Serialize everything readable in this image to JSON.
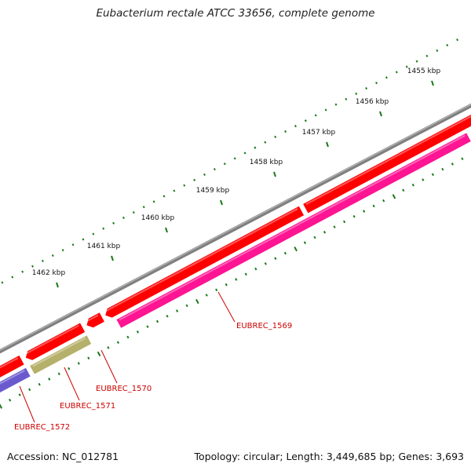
{
  "title": "Eubacterium rectale ATCC 33656, complete genome",
  "footer": {
    "accession_label": "Accession:",
    "accession": "NC_012781",
    "topology_label": "Topology:",
    "topology": "circular",
    "length_label": "Length:",
    "length": "3,449,685 bp",
    "genes_label": "Genes:",
    "genes": "3,693"
  },
  "scale_ticks": [
    "1455 kbp",
    "1456 kbp",
    "1457 kbp",
    "1458 kbp",
    "1459 kbp",
    "1460 kbp",
    "1461 kbp",
    "1462 kbp"
  ],
  "genes": [
    {
      "id": "EUBREC_1569",
      "color": "#ff1493"
    },
    {
      "id": "EUBREC_1570",
      "color": "#ff0000"
    },
    {
      "id": "EUBREC_1571",
      "color": "#b5b06a"
    },
    {
      "id": "EUBREC_1572",
      "color": "#6a5acd"
    }
  ],
  "colors": {
    "backbone": "#808080",
    "forward_strand_gene": "#ff0000",
    "tick": "#1a7a1a",
    "label": "#cc0000"
  }
}
